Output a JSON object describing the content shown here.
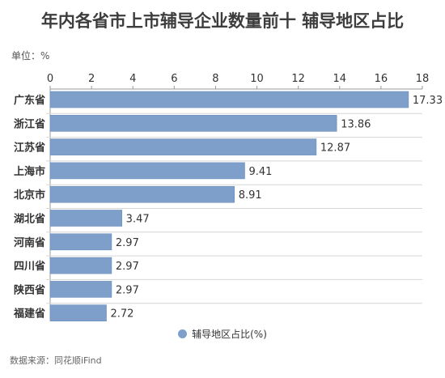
{
  "header": {
    "title": "年内各省市上市辅导企业数量前十 辅导地区占比",
    "unit": "单位：%"
  },
  "footer": {
    "source": "数据来源：同花顺iFind"
  },
  "colors": {
    "bar": "#7f9fcb",
    "bar_stroke": "#6b8cbd",
    "grid": "#d7d7d7",
    "axis": "#9a9a9a",
    "text": "#333333"
  },
  "chart_data": {
    "type": "bar",
    "orientation": "horizontal",
    "categories": [
      "广东省",
      "浙江省",
      "江苏省",
      "上海市",
      "北京市",
      "湖北省",
      "河南省",
      "四川省",
      "陕西省",
      "福建省"
    ],
    "series": [
      {
        "name": "辅导地区占比(%)",
        "values": [
          17.33,
          13.86,
          12.87,
          9.41,
          8.91,
          3.47,
          2.97,
          2.97,
          2.97,
          2.72
        ],
        "labels": [
          "17.33",
          "13.86",
          "12.87",
          "9.41",
          "8.91",
          "3.47",
          "2.97",
          "2.97",
          "2.97",
          "2.72"
        ]
      }
    ],
    "x_ticks": [
      0,
      2,
      4,
      6,
      8,
      10,
      12,
      14,
      16,
      18
    ],
    "xlim": [
      0,
      18
    ],
    "axis_position": "top",
    "grid": true,
    "legend": "bottom-center"
  }
}
